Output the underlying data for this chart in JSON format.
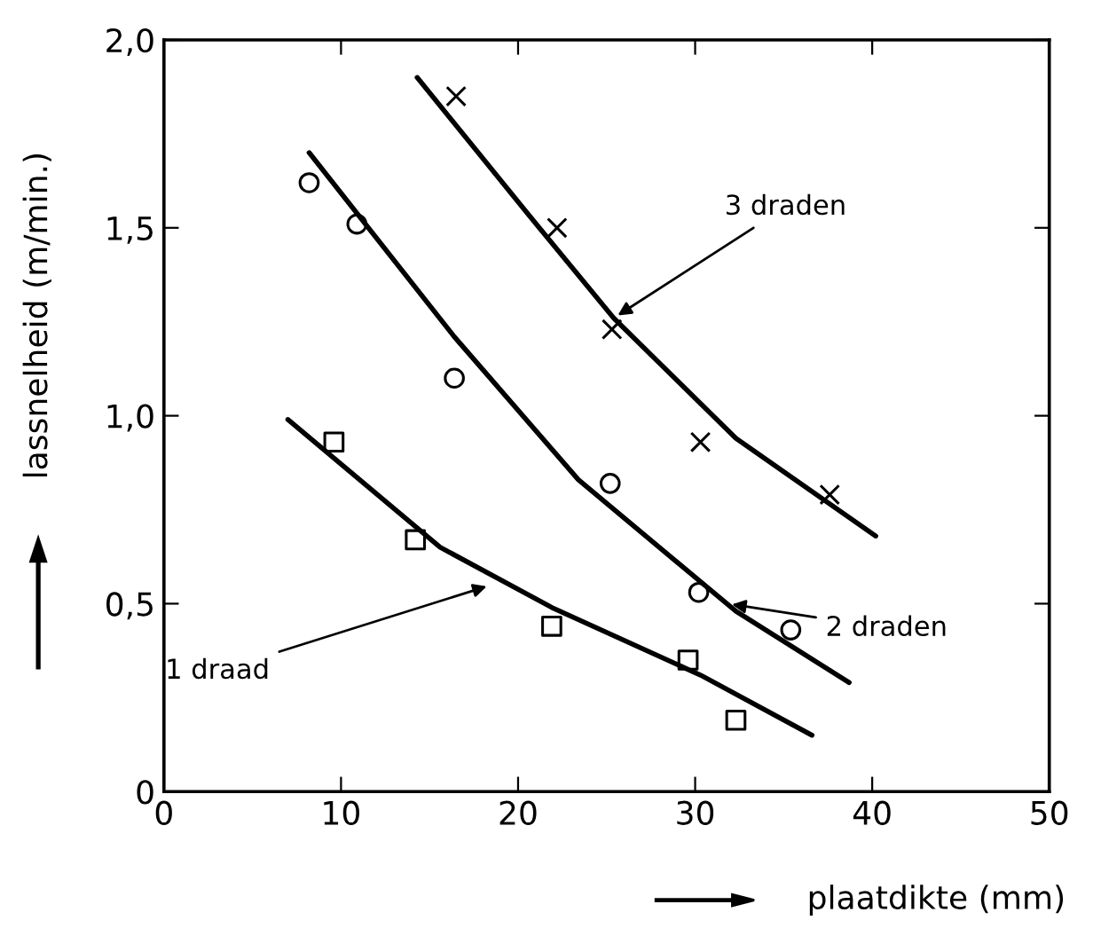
{
  "chart_data": {
    "type": "scatter",
    "xlabel": "plaatdikte (mm)",
    "ylabel": "lassnelheid (m/min.)",
    "xlim": [
      0,
      50
    ],
    "ylim": [
      0,
      2.0
    ],
    "xticks": [
      0,
      10,
      20,
      30,
      40,
      50
    ],
    "yticks": [
      0,
      {
        "value": 0.5,
        "label": "0,5"
      },
      {
        "value": 1.0,
        "label": "1,0"
      },
      {
        "value": 1.5,
        "label": "1,5"
      },
      {
        "value": 2.0,
        "label": "2,0"
      }
    ],
    "grid": false,
    "legend": false,
    "series": [
      {
        "marker": "square",
        "color": "#000000",
        "x": [
          9.6,
          14.2,
          21.9,
          29.6,
          32.3
        ],
        "values": [
          0.93,
          0.67,
          0.44,
          0.35,
          0.19
        ]
      },
      {
        "marker": "circle",
        "color": "#000000",
        "x": [
          8.2,
          10.9,
          16.4,
          25.2,
          30.2,
          35.4
        ],
        "values": [
          1.62,
          1.51,
          1.1,
          0.82,
          0.53,
          0.43
        ]
      },
      {
        "marker": "cross",
        "color": "#000000",
        "x": [
          16.5,
          22.2,
          25.3,
          30.3,
          37.6
        ],
        "values": [
          1.85,
          1.5,
          1.23,
          0.93,
          0.79
        ]
      },
      {
        "type": "line",
        "color": "#000000",
        "x": [
          7.0,
          15.6,
          21.9,
          30.3,
          36.6
        ],
        "values": [
          0.99,
          0.65,
          0.49,
          0.31,
          0.15
        ]
      },
      {
        "type": "line",
        "color": "#000000",
        "x": [
          8.2,
          16.4,
          23.4,
          32.3,
          38.7
        ],
        "values": [
          1.7,
          1.21,
          0.83,
          0.48,
          0.29
        ]
      },
      {
        "type": "line",
        "color": "#000000",
        "x": [
          14.3,
          20.5,
          25.4,
          32.3,
          40.2
        ],
        "values": [
          1.9,
          1.54,
          1.26,
          0.94,
          0.68
        ]
      }
    ],
    "annotations": [
      {
        "text": "3 draden",
        "x": 25.4,
        "y": 1.26
      },
      {
        "text": "2 draden",
        "x": 31.8,
        "y": 0.5
      },
      {
        "text": "1 draad",
        "x": 18.5,
        "y": 0.55
      }
    ]
  }
}
